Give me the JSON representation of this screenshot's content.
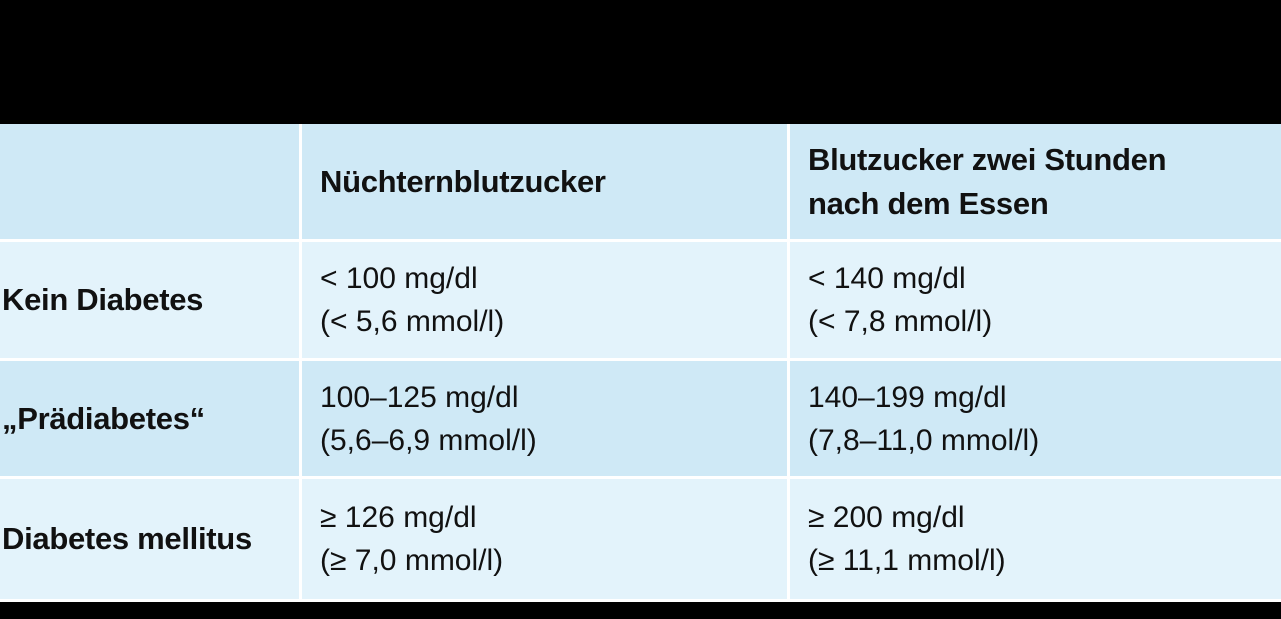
{
  "table": {
    "headers": [
      "",
      "Nüchternblutzucker",
      "Blutzucker zwei Stunden nach dem Essen"
    ],
    "header_col3_lines": [
      "Blutzucker zwei Stunden",
      "nach dem Essen"
    ],
    "rows": [
      {
        "label": "Kein Diabetes",
        "fasting": [
          "< 100 mg/dl",
          "(< 5,6 mmol/l)"
        ],
        "two_hours": [
          "< 140 mg/dl",
          "(< 7,8 mmol/l)"
        ]
      },
      {
        "label": "„Prädiabetes“",
        "fasting": [
          "100–125 mg/dl",
          "(5,6–6,9 mmol/l)"
        ],
        "two_hours": [
          "140–199 mg/dl",
          "(7,8–11,0 mmol/l)"
        ]
      },
      {
        "label": "Diabetes mellitus",
        "fasting": [
          "≥ 126 mg/dl",
          "(≥ 7,0 mmol/l)"
        ],
        "two_hours": [
          "≥ 200 mg/dl",
          "(≥ 11,1 mmol/l)"
        ]
      }
    ]
  },
  "colors": {
    "background": "#000000",
    "header_row": "#cfe9f6",
    "light_row": "#e3f3fb",
    "mid_row": "#cfe9f6",
    "text": "#111111"
  }
}
